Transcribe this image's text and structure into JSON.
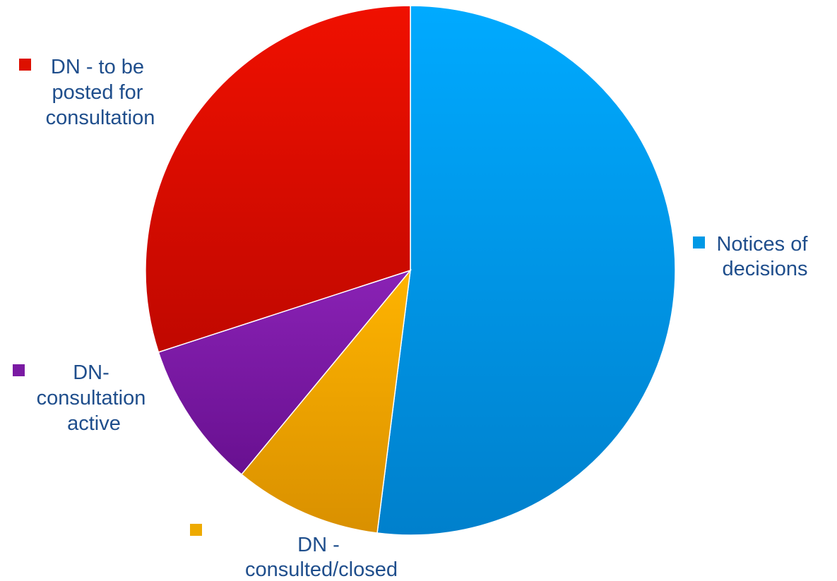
{
  "chart_data": {
    "type": "pie",
    "title": "",
    "slices": [
      {
        "label": "Notices of decisions",
        "value": 52,
        "color": "#0099e6",
        "color_light": "#00aaff",
        "color_dark": "#0080cc"
      },
      {
        "label": "DN - consulted/closed",
        "value": 9,
        "color": "#eeaa00",
        "color_light": "#ffb400",
        "color_dark": "#d99000"
      },
      {
        "label": "DN-consultation active",
        "value": 9,
        "color": "#7a1aa3",
        "color_light": "#8a22b5",
        "color_dark": "#681090"
      },
      {
        "label": "DN - to be posted for consultation",
        "value": 30,
        "color": "#dd1000",
        "color_light": "#f01000",
        "color_dark": "#c00800"
      }
    ],
    "start_angle_deg": 0,
    "direction": "clockwise",
    "legend": {
      "placement": "around",
      "text_color": "#1f4e8c"
    }
  }
}
